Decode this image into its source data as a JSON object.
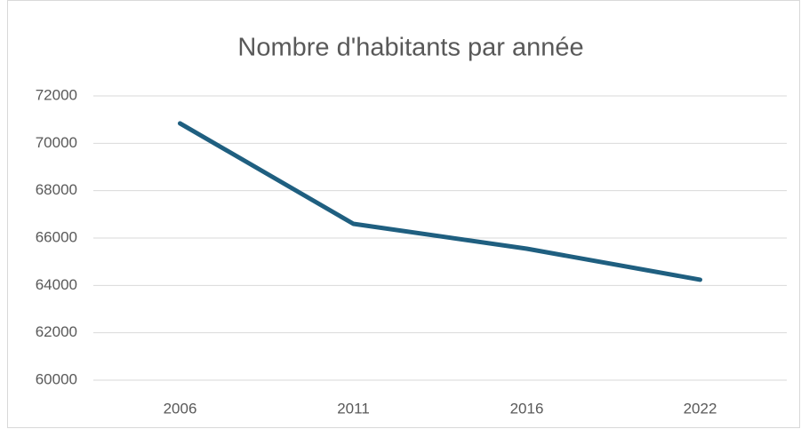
{
  "chart_data": {
    "type": "line",
    "title": "Nombre d'habitants par année",
    "categories": [
      "2006",
      "2011",
      "2016",
      "2022"
    ],
    "series": [
      {
        "name": "Nombre d'habitants",
        "color": "#1f5f80",
        "values": [
          70840,
          66600,
          65550,
          64240
        ]
      }
    ],
    "ylim": [
      60000,
      72000
    ],
    "yticks": [
      60000,
      62000,
      64000,
      66000,
      68000,
      70000,
      72000
    ],
    "grid": true
  }
}
